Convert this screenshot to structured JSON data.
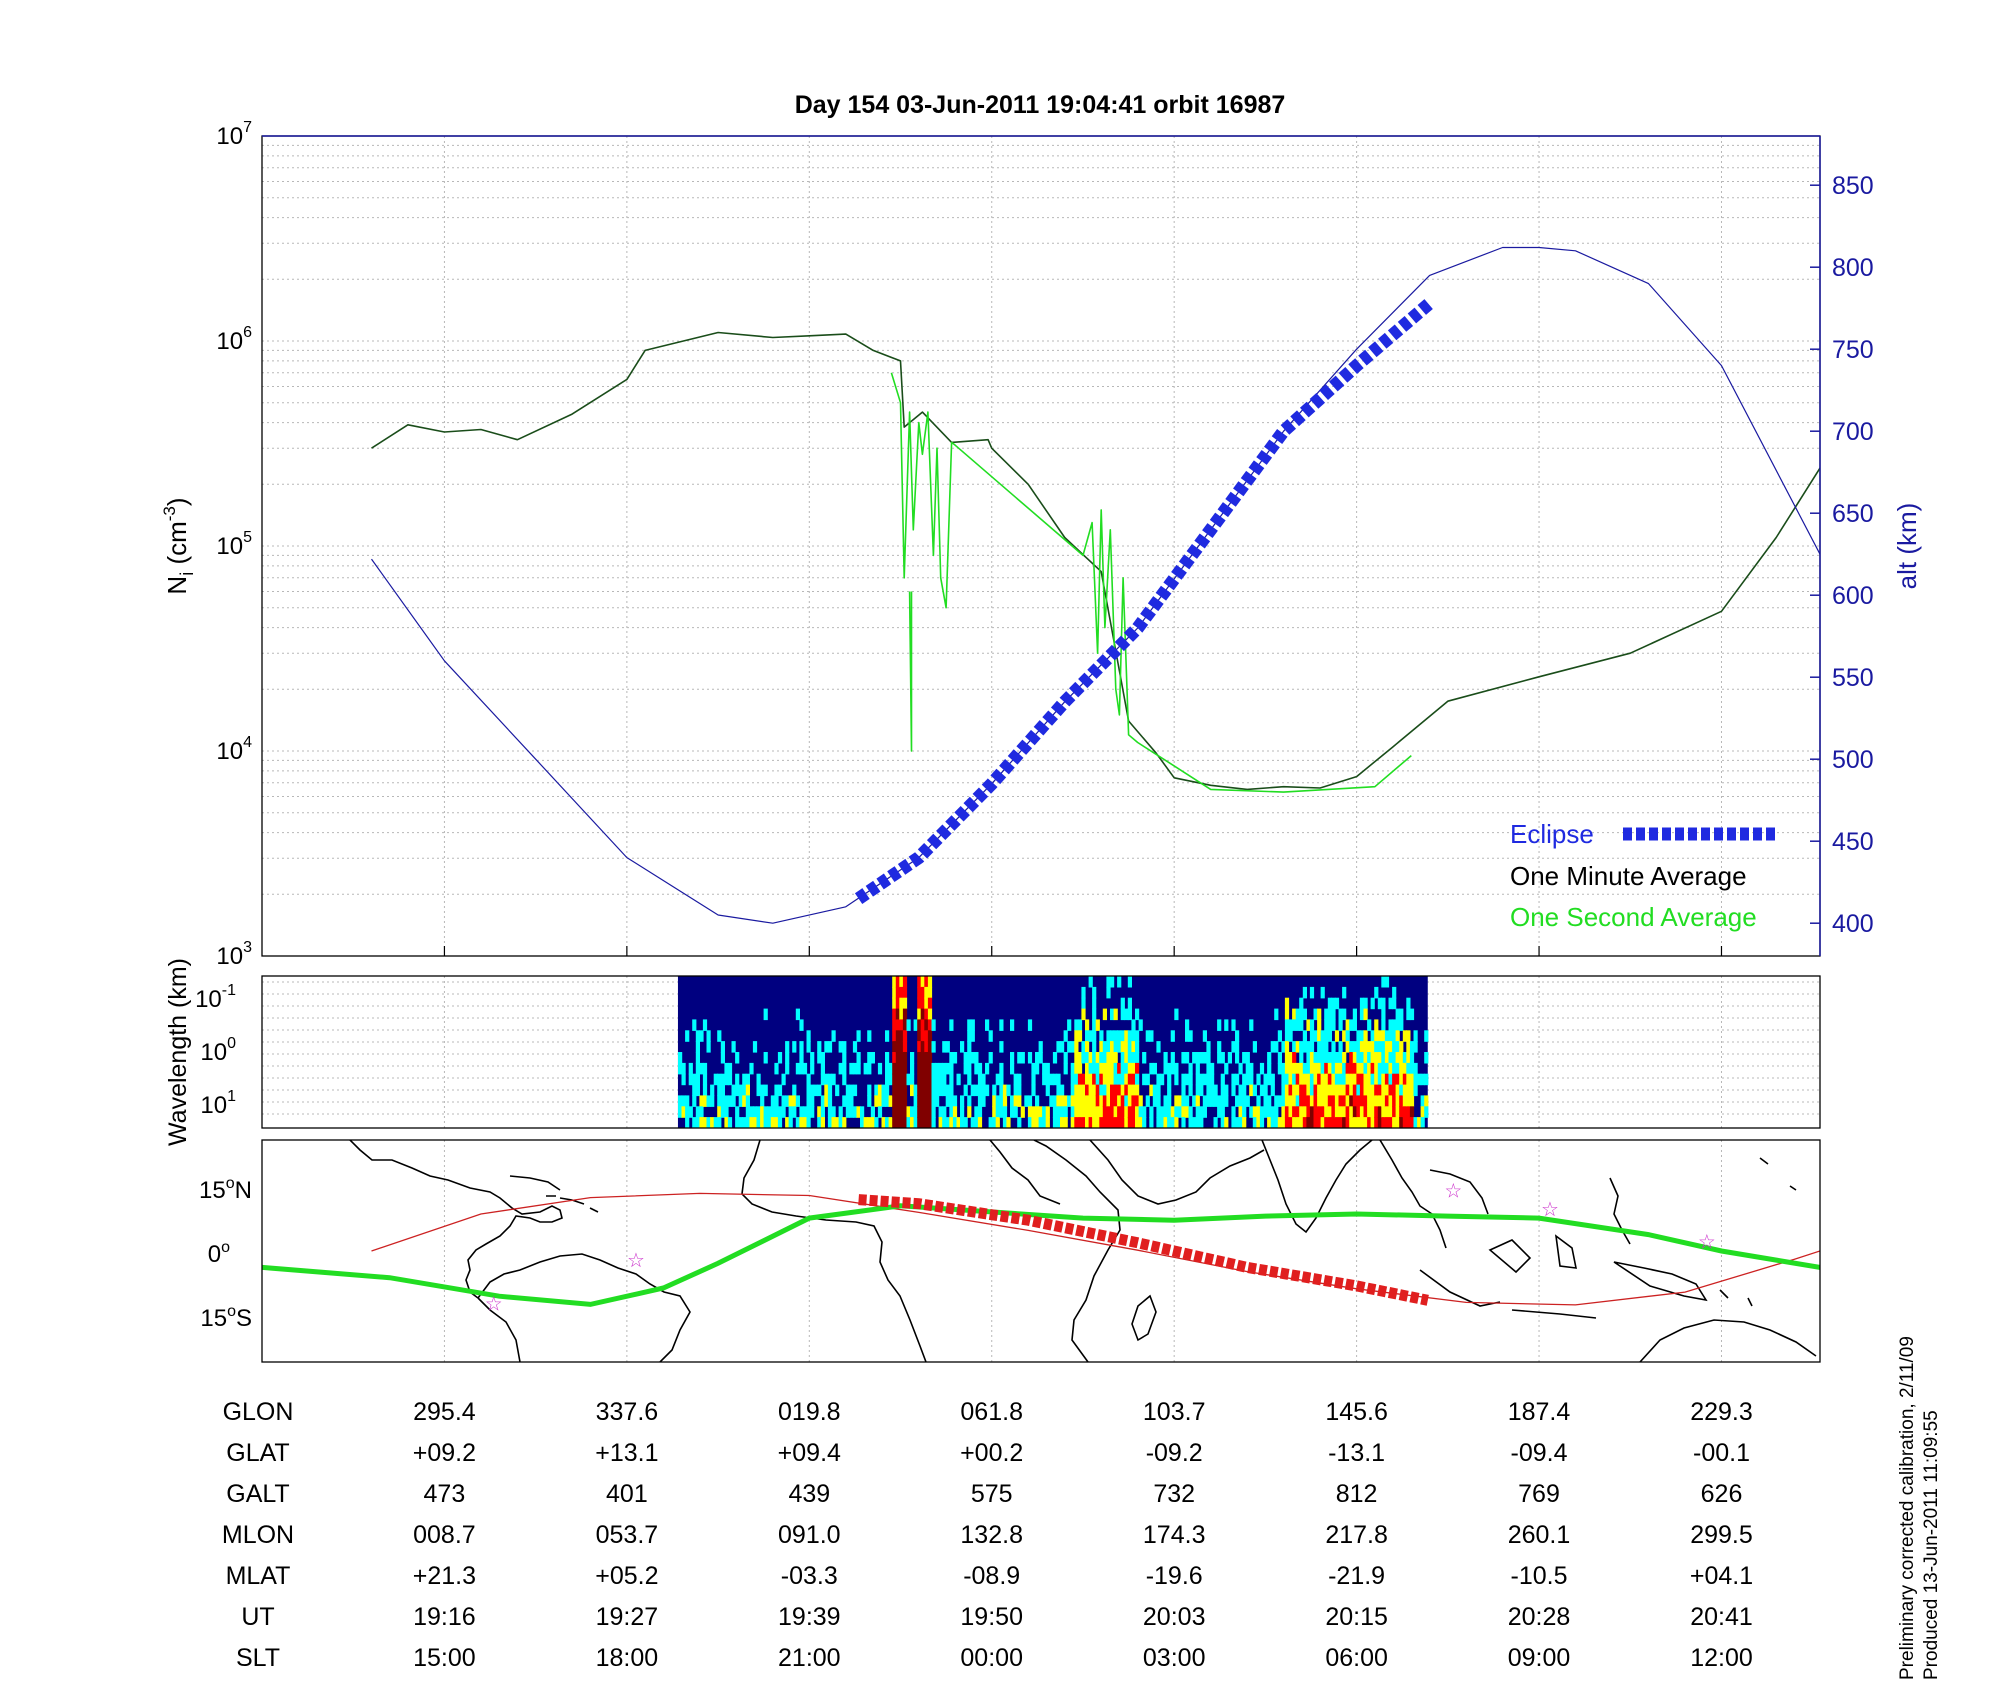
{
  "chart_data": [
    {
      "type": "line",
      "title": "Day 154  03-Jun-2011 19:04:41   orbit 16987",
      "ylabel": "N",
      "ylabel_sub": "i",
      "ylabel_units": " (cm",
      "ylabel_units_sup": "-3",
      "ylabel_close": ")",
      "yscale": "log",
      "ylim": [
        1000,
        10000000
      ],
      "y_ticks": [
        {
          "base": "10",
          "exp": "3",
          "value": 1000
        },
        {
          "base": "10",
          "exp": "4",
          "value": 10000
        },
        {
          "base": "10",
          "exp": "5",
          "value": 100000
        },
        {
          "base": "10",
          "exp": "6",
          "value": 1000000
        },
        {
          "base": "10",
          "exp": "7",
          "value": 10000000
        }
      ],
      "y2label": "alt (km)",
      "y2lim": [
        380,
        880
      ],
      "y2_ticks": [
        "400",
        "450",
        "500",
        "550",
        "600",
        "650",
        "700",
        "750",
        "800",
        "850"
      ],
      "xlim": [
        0,
        8.54
      ],
      "legend": {
        "position": "bottom-right",
        "entries": [
          {
            "label": "Eclipse",
            "color": "#1f2ae0"
          },
          {
            "label": "One Minute Average",
            "color": "#000000"
          },
          {
            "label": "One Second Average",
            "color": "#22dd22"
          }
        ]
      },
      "series": [
        {
          "name": "One Minute Average",
          "color": "#1a4d1a",
          "axis": "left",
          "x": [
            0.6,
            0.8,
            1.0,
            1.2,
            1.4,
            1.7,
            2.0,
            2.1,
            2.5,
            2.8,
            3.0,
            3.2,
            3.35,
            3.5,
            3.52,
            3.62,
            3.78,
            3.98,
            4.0,
            4.2,
            4.4,
            4.6,
            4.75,
            4.9,
            5.0,
            5.2,
            5.4,
            5.6,
            5.8,
            6.0,
            6.2,
            6.5,
            7.0,
            7.5,
            8.0,
            8.3,
            8.54
          ],
          "y": [
            300000,
            390000,
            360000,
            370000,
            330000,
            440000,
            650000,
            900000,
            1100000,
            1040000,
            1060000,
            1080000,
            900000,
            800000,
            380000,
            450000,
            320000,
            330000,
            300000,
            200000,
            110000,
            75000,
            14000,
            9800,
            7400,
            6800,
            6500,
            6700,
            6600,
            7500,
            10500,
            17500,
            23000,
            30000,
            48000,
            110000,
            240000
          ]
        },
        {
          "name": "One Second Average",
          "color": "#22dd22",
          "axis": "left",
          "overlay": "segment",
          "x": [
            3.45,
            3.5,
            3.52,
            3.55,
            3.57,
            3.6,
            3.62,
            3.65,
            3.68,
            3.7,
            3.72,
            3.75,
            3.78,
            3.8,
            4.5,
            4.55,
            4.58,
            4.6,
            4.62,
            4.65,
            4.68,
            4.7,
            4.72,
            4.75,
            4.8,
            5.2,
            5.6,
            6.1,
            6.3
          ],
          "y": [
            700000,
            500000,
            70000,
            450000,
            120000,
            400000,
            280000,
            450000,
            90000,
            300000,
            70000,
            50000,
            320000,
            310000,
            90000,
            130000,
            30000,
            150000,
            40000,
            120000,
            20000,
            15000,
            70000,
            12000,
            11000,
            6500,
            6300,
            6700,
            9500
          ]
        },
        {
          "name": "One Second Average spike",
          "color": "#22dd22",
          "axis": "left",
          "overlay": "segment",
          "x": [
            3.55,
            3.56,
            3.56
          ],
          "y": [
            60000,
            10000,
            60000
          ]
        },
        {
          "name": "Altitude",
          "color": "#1a1aa0",
          "axis": "right",
          "x": [
            0.6,
            1.0,
            1.5,
            2.0,
            2.5,
            2.8,
            3.2,
            3.6,
            4.0,
            4.4,
            4.8,
            5.2,
            5.6,
            6.0,
            6.4,
            6.8,
            7.0,
            7.2,
            7.4,
            7.6,
            8.0,
            8.54
          ],
          "y": [
            622,
            560,
            500,
            440,
            405,
            400,
            410,
            440,
            485,
            535,
            580,
            640,
            700,
            750,
            795,
            812,
            812,
            810,
            800,
            790,
            740,
            625
          ]
        },
        {
          "name": "Eclipse",
          "color": "#1f2ae0",
          "axis": "right",
          "style": "thick-dashed",
          "x": [
            3.27,
            3.6,
            4.0,
            4.4,
            4.8,
            5.2,
            5.6,
            6.0,
            6.4
          ],
          "y": [
            415,
            440,
            485,
            535,
            580,
            640,
            700,
            740,
            778
          ]
        }
      ]
    },
    {
      "type": "heatmap",
      "ylabel": "Wavelength (km)",
      "y_ticks": [
        {
          "base": "10",
          "exp": "-1"
        },
        {
          "base": "10",
          "exp": "0"
        },
        {
          "base": "10",
          "exp": "1"
        }
      ],
      "colormap": [
        "#000080",
        "#0000ff",
        "#00ffff",
        "#ffff00",
        "#ff0000",
        "#800000"
      ],
      "data_xrange": [
        2.28,
        6.39
      ]
    },
    {
      "type": "map",
      "y_ticks": [
        {
          "deg": "15",
          "suffix": "N"
        },
        {
          "deg": "0",
          "suffix": ""
        },
        {
          "deg": "15",
          "suffix": "S"
        }
      ],
      "lat_range": [
        -27,
        27
      ],
      "series": [
        {
          "name": "Orbit track",
          "color": "#cc2222",
          "x": [
            0.6,
            1.2,
            1.8,
            2.4,
            3.0,
            3.6,
            4.2,
            4.8,
            5.4,
            6.0,
            6.6,
            7.2,
            7.8,
            8.4,
            8.54
          ],
          "lat": [
            0,
            9,
            13,
            14,
            13.5,
            9.4,
            5,
            0.2,
            -5,
            -9.2,
            -12.5,
            -13.1,
            -10,
            -2,
            0
          ]
        },
        {
          "name": "Geomagnetic equator",
          "color": "#22dd22",
          "x": [
            0.0,
            0.7,
            1.3,
            1.8,
            2.2,
            2.5,
            3.0,
            3.5,
            4.5,
            5.0,
            5.5,
            6.0,
            6.5,
            7.0,
            7.6,
            8.0,
            8.54
          ],
          "lat": [
            -4,
            -6.5,
            -11,
            -13,
            -9,
            -3,
            8,
            11,
            8,
            7.5,
            8.5,
            9,
            8.5,
            8,
            4,
            0,
            -4
          ]
        },
        {
          "name": "Eclipse track",
          "color": "#e01f1f",
          "style": "thick-dashed",
          "x": [
            3.27,
            3.6,
            4.2,
            4.8,
            5.4,
            6.0,
            6.39
          ],
          "lat": [
            12.5,
            11.5,
            7.5,
            2,
            -4,
            -8.5,
            -12
          ]
        }
      ],
      "stars": [
        {
          "x": 1.27,
          "lat": -12.5
        },
        {
          "x": 2.05,
          "lat": -2
        },
        {
          "x": 6.53,
          "lat": 15
        },
        {
          "x": 7.06,
          "lat": 10.5
        },
        {
          "x": 7.92,
          "lat": 2.5
        }
      ]
    }
  ],
  "table": {
    "rows": [
      {
        "label": "GLON",
        "values": [
          "295.4",
          "337.6",
          "019.8",
          "061.8",
          "103.7",
          "145.6",
          "187.4",
          "229.3"
        ]
      },
      {
        "label": "GLAT",
        "values": [
          "+09.2",
          "+13.1",
          "+09.4",
          "+00.2",
          "-09.2",
          "-13.1",
          "-09.4",
          "-00.1"
        ]
      },
      {
        "label": "GALT",
        "values": [
          "473",
          "401",
          "439",
          "575",
          "732",
          "812",
          "769",
          "626"
        ]
      },
      {
        "label": "MLON",
        "values": [
          "008.7",
          "053.7",
          "091.0",
          "132.8",
          "174.3",
          "217.8",
          "260.1",
          "299.5"
        ]
      },
      {
        "label": "MLAT",
        "values": [
          "+21.3",
          "+05.2",
          "-03.3",
          "-08.9",
          "-19.6",
          "-21.9",
          "-10.5",
          "+04.1"
        ]
      },
      {
        "label": "UT",
        "values": [
          "19:16",
          "19:27",
          "19:39",
          "19:50",
          "20:03",
          "20:15",
          "20:28",
          "20:41"
        ]
      },
      {
        "label": "SLT",
        "values": [
          "15:00",
          "18:00",
          "21:00",
          "00:00",
          "03:00",
          "06:00",
          "09:00",
          "12:00"
        ]
      }
    ]
  },
  "footer": {
    "calibration_note": "Preliminary corrected calibration, 2/11/09",
    "produced": "Produced 13-Jun-2011 11:09:55"
  },
  "colors": {
    "axis": "#000000",
    "right_axis": "#1a1aa0",
    "grid": "#b8b8b8"
  }
}
